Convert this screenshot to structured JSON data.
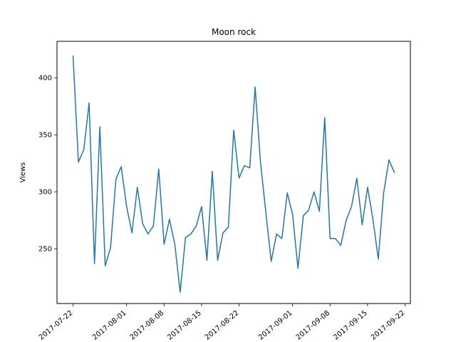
{
  "chart_data": {
    "type": "line",
    "title": "Moon rock",
    "xlabel": "",
    "ylabel": "Views",
    "x_start_date": "2017-07-22",
    "x": [
      "2017-07-22",
      "2017-07-23",
      "2017-07-24",
      "2017-07-25",
      "2017-07-26",
      "2017-07-27",
      "2017-07-28",
      "2017-07-29",
      "2017-07-30",
      "2017-07-31",
      "2017-08-01",
      "2017-08-02",
      "2017-08-03",
      "2017-08-04",
      "2017-08-05",
      "2017-08-06",
      "2017-08-07",
      "2017-08-08",
      "2017-08-09",
      "2017-08-10",
      "2017-08-11",
      "2017-08-12",
      "2017-08-13",
      "2017-08-14",
      "2017-08-15",
      "2017-08-16",
      "2017-08-17",
      "2017-08-18",
      "2017-08-19",
      "2017-08-20",
      "2017-08-21",
      "2017-08-22",
      "2017-08-23",
      "2017-08-24",
      "2017-08-25",
      "2017-08-26",
      "2017-08-27",
      "2017-08-28",
      "2017-08-29",
      "2017-08-30",
      "2017-08-31",
      "2017-09-01",
      "2017-09-02",
      "2017-09-03",
      "2017-09-04",
      "2017-09-05",
      "2017-09-06",
      "2017-09-07",
      "2017-09-08",
      "2017-09-09",
      "2017-09-10",
      "2017-09-11",
      "2017-09-12",
      "2017-09-13",
      "2017-09-14",
      "2017-09-15",
      "2017-09-16",
      "2017-09-17",
      "2017-09-18",
      "2017-09-19",
      "2017-09-20"
    ],
    "series": [
      {
        "name": "",
        "color": "#1f77b4",
        "values": [
          419,
          326,
          337,
          378,
          237,
          357,
          235,
          251,
          311,
          322,
          287,
          264,
          304,
          272,
          263,
          270,
          320,
          254,
          276,
          254,
          212,
          260,
          263,
          270,
          287,
          240,
          318,
          240,
          264,
          269,
          354,
          312,
          323,
          321,
          392,
          326,
          282,
          239,
          263,
          259,
          299,
          280,
          233,
          279,
          284,
          300,
          283,
          365,
          259,
          259,
          253,
          275,
          287,
          312,
          271,
          304,
          276,
          241,
          299,
          328,
          317
        ]
      }
    ],
    "xticks": [
      "2017-07-22",
      "2017-08-01",
      "2017-08-08",
      "2017-08-15",
      "2017-08-22",
      "2017-09-01",
      "2017-09-08",
      "2017-09-15",
      "2017-09-22"
    ],
    "xlim": [
      "2017-07-19",
      "2017-09-23"
    ],
    "yticks": [
      250,
      300,
      350,
      400
    ],
    "ylim": [
      202,
      432
    ],
    "grid": false,
    "legend": "none"
  }
}
